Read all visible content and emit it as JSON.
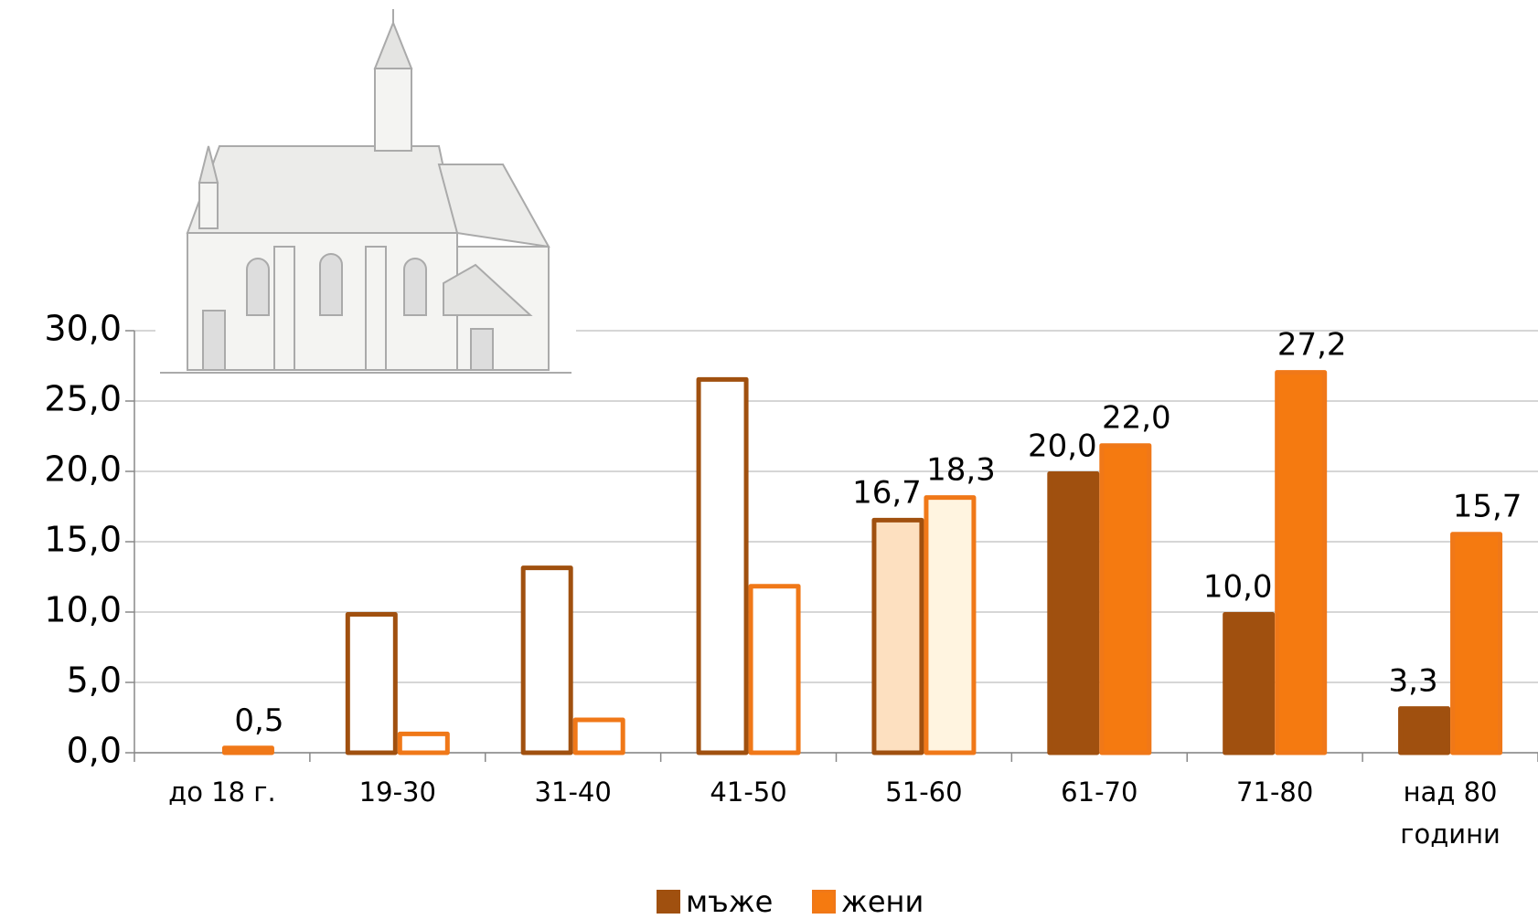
{
  "chart_data": {
    "type": "bar",
    "categories": [
      "до 18 г.",
      "19-30",
      "31-40",
      "41-50",
      "51-60",
      "61-70",
      "71-80",
      "над 80 години"
    ],
    "series": [
      {
        "name": "мъже",
        "color": "#a0500f",
        "fills": [
          "#ffffff",
          "#ffffff",
          "#ffffff",
          "#ffffff",
          "#fde0c0",
          "#a0500f",
          "#a0500f",
          "#a0500f"
        ],
        "values": [
          null,
          10.0,
          13.3,
          26.7,
          16.7,
          20.0,
          10.0,
          3.3
        ],
        "value_labels": [
          null,
          null,
          null,
          null,
          "16,7",
          "20,0",
          "10,0",
          "3,3"
        ]
      },
      {
        "name": "жени",
        "color": "#f07818",
        "fills": [
          "#f07818",
          "#ffffff",
          "#ffffff",
          "#ffffff",
          "#fff4e0",
          "#f57a10",
          "#f57a10",
          "#f57a10"
        ],
        "values": [
          0.5,
          1.5,
          2.5,
          12.0,
          18.3,
          22.0,
          27.2,
          15.7
        ],
        "value_labels": [
          "0,5",
          null,
          null,
          null,
          "18,3",
          "22,0",
          "27,2",
          "15,7"
        ]
      }
    ],
    "ylim": [
      0,
      30
    ],
    "yticks": [
      {
        "value": 0,
        "label": "0,0"
      },
      {
        "value": 5,
        "label": "5,0"
      },
      {
        "value": 10,
        "label": "10,0"
      },
      {
        "value": 15,
        "label": "15,0"
      },
      {
        "value": 20,
        "label": "20,0"
      },
      {
        "value": 25,
        "label": "25,0"
      },
      {
        "value": 30,
        "label": "30,0"
      }
    ],
    "grid": true
  }
}
